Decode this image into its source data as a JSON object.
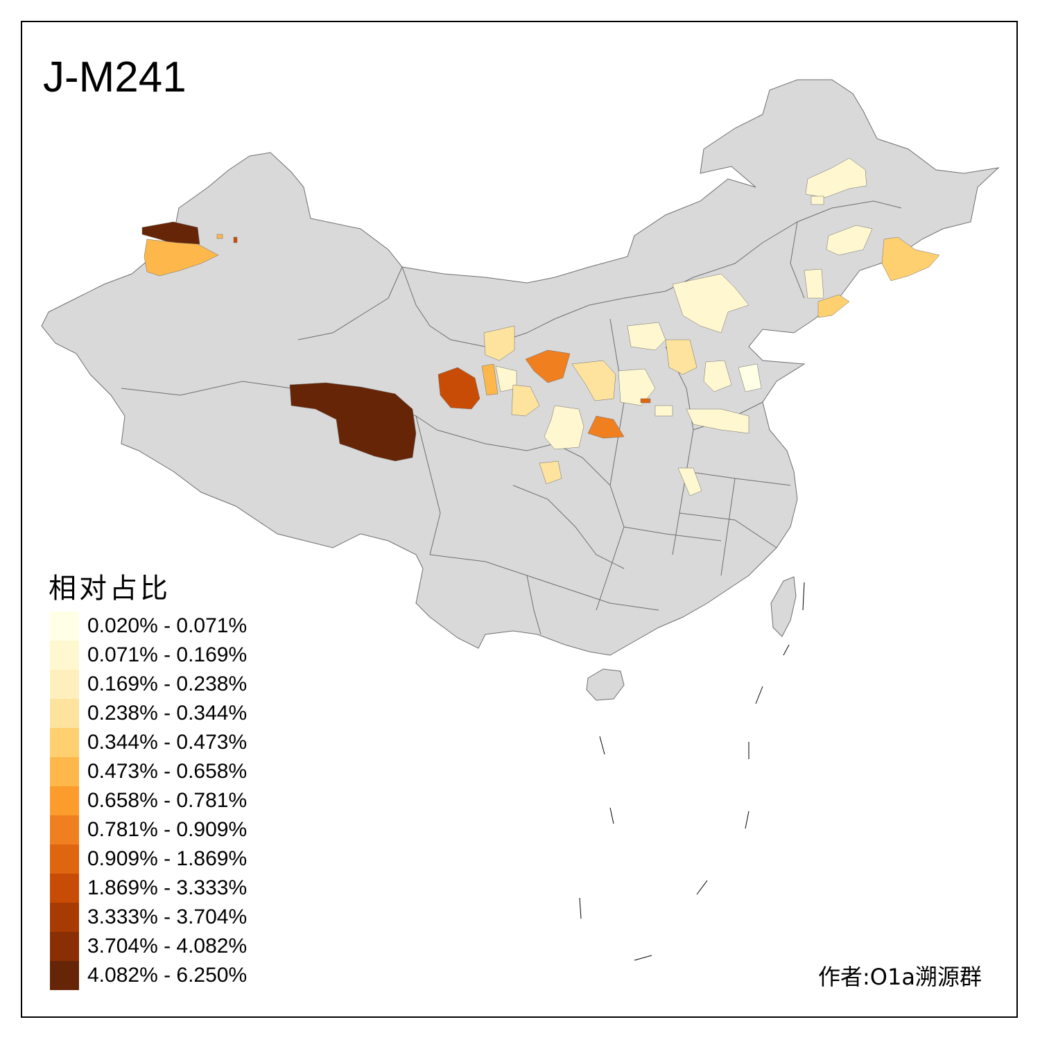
{
  "title": "J-M241",
  "legend": {
    "title": "相对占比",
    "classes": [
      {
        "label": "0.020% - 0.071%",
        "color": "#ffffe5"
      },
      {
        "label": "0.071% - 0.169%",
        "color": "#fff7cf"
      },
      {
        "label": "0.169% - 0.238%",
        "color": "#ffefbc"
      },
      {
        "label": "0.238% - 0.344%",
        "color": "#fee39e"
      },
      {
        "label": "0.344% - 0.473%",
        "color": "#fed06f"
      },
      {
        "label": "0.473% - 0.658%",
        "color": "#feb74a"
      },
      {
        "label": "0.658% - 0.781%",
        "color": "#fb9c2c"
      },
      {
        "label": "0.781% - 0.909%",
        "color": "#f07f1f"
      },
      {
        "label": "0.909% - 1.869%",
        "color": "#e0650f"
      },
      {
        "label": "1.869% - 3.333%",
        "color": "#c84c05"
      },
      {
        "label": "3.333% - 3.704%",
        "color": "#a83b03"
      },
      {
        "label": "3.704% - 4.082%",
        "color": "#8a2f04"
      },
      {
        "label": "4.082% - 6.250%",
        "color": "#662506"
      }
    ]
  },
  "author": "作者:O1a溯源群",
  "map_colors": {
    "base": "#d9d9d9",
    "border": "#6e6e6e",
    "background": "#ffffff"
  }
}
